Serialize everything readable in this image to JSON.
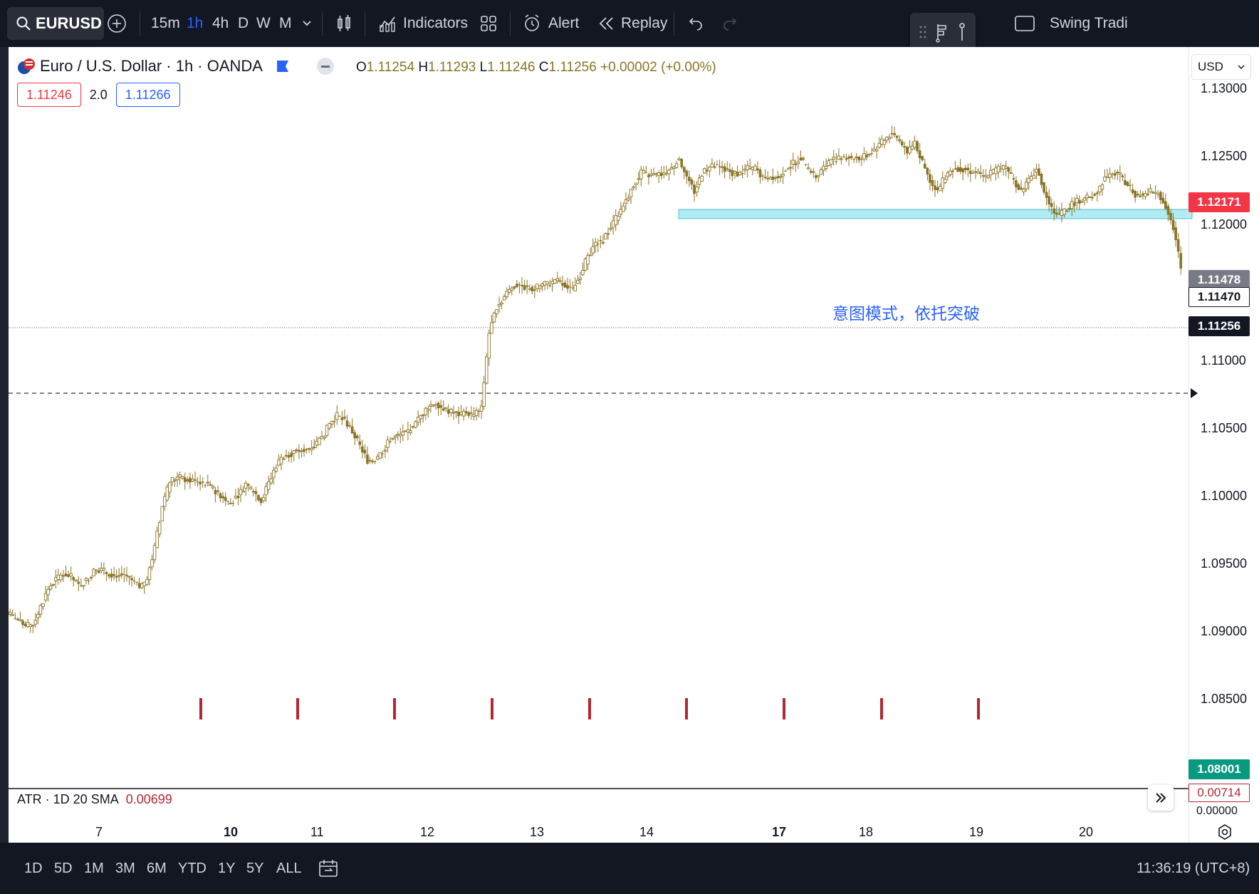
{
  "toolbar": {
    "symbol": "EURUSD",
    "intervals": [
      "15m",
      "1h",
      "4h",
      "D",
      "W",
      "M"
    ],
    "active_interval": "1h",
    "indicators_label": "Indicators",
    "alert_label": "Alert",
    "replay_label": "Replay",
    "layout_name": "Swing Tradi"
  },
  "legend": {
    "title": "Euro / U.S. Dollar · 1h · OANDA",
    "open_label": "O",
    "open": "1.11254",
    "high_label": "H",
    "high": "1.11293",
    "low_label": "L",
    "low": "1.11246",
    "close_label": "C",
    "close": "1.11256",
    "change": "+0.00002 (+0.00%)",
    "sell_price": "1.11246",
    "spread": "2.0",
    "buy_price": "1.11266"
  },
  "price_axis": {
    "currency": "USD",
    "ticks": [
      "1.13000",
      "1.12500",
      "1.12000",
      "1.11000",
      "1.10500",
      "1.10000",
      "1.09500",
      "1.09000",
      "1.08500"
    ],
    "tags": {
      "red": "1.12171",
      "gray": "1.11478",
      "white": "1.11470",
      "black": "1.11256",
      "green": "1.08001"
    }
  },
  "annotation": "意图模式，依托突破",
  "atr": {
    "label": "ATR · 1D 20 SMA",
    "value": "0.00699",
    "axis_value": "0.00714",
    "axis_zero": "0.00000"
  },
  "time_axis": {
    "labels": [
      "7",
      "10",
      "11",
      "12",
      "13",
      "14",
      "17",
      "18",
      "19",
      "20"
    ]
  },
  "range_buttons": [
    "1D",
    "5D",
    "1M",
    "3M",
    "6M",
    "YTD",
    "1Y",
    "5Y",
    "ALL"
  ],
  "clock": "11:36:19 (UTC+8)",
  "colors": {
    "candle": "#8b7324",
    "zone": "#b2ebf2",
    "accent": "#2962ff",
    "red": "#f23645",
    "green": "#089981"
  },
  "chart_data": {
    "type": "candlestick",
    "ylim": [
      1.078,
      1.131
    ],
    "close_path": [
      1.0853,
      1.0848,
      1.0843,
      1.0845,
      1.086,
      1.0875,
      1.0883,
      1.0888,
      1.0885,
      1.0878,
      1.0882,
      1.089,
      1.0891,
      1.0888,
      1.0886,
      1.0887,
      1.0882,
      1.0876,
      1.0883,
      1.091,
      1.0945,
      1.0966,
      1.097,
      1.0968,
      1.0967,
      1.0966,
      1.0963,
      1.0958,
      1.0953,
      1.0948,
      1.0955,
      1.0964,
      1.0958,
      1.095,
      1.0965,
      1.098,
      1.0988,
      1.099,
      1.0992,
      1.0994,
      1.0997,
      1.1003,
      1.1015,
      1.1022,
      1.1018,
      1.1008,
      1.0996,
      1.0984,
      1.0985,
      1.0992,
      1.1002,
      1.1005,
      1.1008,
      1.1012,
      1.1022,
      1.103,
      1.1033,
      1.1028,
      1.1025,
      1.1023,
      1.1025,
      1.1022,
      1.103,
      1.1092,
      1.1115,
      1.1123,
      1.1132,
      1.1133,
      1.113,
      1.113,
      1.1133,
      1.1134,
      1.1136,
      1.1133,
      1.1128,
      1.1142,
      1.1158,
      1.1168,
      1.1172,
      1.1182,
      1.1193,
      1.1205,
      1.1218,
      1.1228,
      1.1226,
      1.1226,
      1.1228,
      1.1232,
      1.124,
      1.1225,
      1.1212,
      1.1228,
      1.1233,
      1.1234,
      1.1232,
      1.1228,
      1.1228,
      1.1232,
      1.1232,
      1.1225,
      1.1225,
      1.1225,
      1.1232,
      1.1236,
      1.1241,
      1.123,
      1.1225,
      1.1232,
      1.124,
      1.124,
      1.1242,
      1.1241,
      1.124,
      1.1245,
      1.125,
      1.1256,
      1.1262,
      1.1255,
      1.1245,
      1.1255,
      1.1236,
      1.1222,
      1.1213,
      1.1225,
      1.1232,
      1.1232,
      1.123,
      1.1228,
      1.1225,
      1.1228,
      1.1232,
      1.1233,
      1.1222,
      1.1212,
      1.1222,
      1.1232,
      1.1212,
      1.1198,
      1.1192,
      1.1198,
      1.1203,
      1.1205,
      1.1207,
      1.1212,
      1.1224,
      1.1228,
      1.1226,
      1.1218,
      1.121,
      1.1208,
      1.1212,
      1.1212,
      1.12,
      1.1182,
      1.1148
    ]
  }
}
